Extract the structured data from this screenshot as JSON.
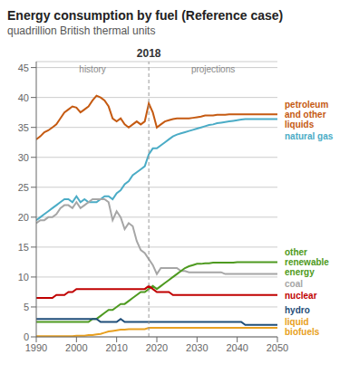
{
  "chart_data": {
    "type": "line",
    "title": "Energy consumption by fuel (Reference case)",
    "subtitle": "quadrillion British thermal units",
    "x": [
      1990,
      1991,
      1992,
      1993,
      1994,
      1995,
      1996,
      1997,
      1998,
      1999,
      2000,
      2001,
      2002,
      2003,
      2004,
      2005,
      2006,
      2007,
      2008,
      2009,
      2010,
      2011,
      2012,
      2013,
      2014,
      2015,
      2016,
      2017,
      2018,
      2019,
      2020,
      2021,
      2022,
      2023,
      2024,
      2025,
      2026,
      2027,
      2028,
      2029,
      2030,
      2031,
      2032,
      2033,
      2034,
      2035,
      2036,
      2037,
      2038,
      2039,
      2040,
      2041,
      2042,
      2043,
      2044,
      2045,
      2046,
      2047,
      2048,
      2049,
      2050
    ],
    "xlim": [
      1990,
      2050
    ],
    "xticks": [
      1990,
      2000,
      2010,
      2020,
      2030,
      2040,
      2050
    ],
    "ylim": [
      0,
      46
    ],
    "yticks": [
      0,
      5,
      10,
      15,
      20,
      25,
      30,
      35,
      40,
      45
    ],
    "grid": true,
    "split": {
      "x": 2018,
      "label": "2018",
      "before": "history",
      "after": "projections"
    },
    "series": [
      {
        "name": "petroleum\nand other\nliquids",
        "color": "#c55a11",
        "values": [
          33.0,
          33.5,
          34.2,
          34.5,
          35.0,
          35.5,
          36.5,
          37.5,
          38.0,
          38.5,
          38.3,
          37.5,
          38.0,
          38.5,
          39.5,
          40.3,
          40.0,
          39.5,
          38.5,
          36.5,
          36.0,
          36.5,
          35.5,
          35.0,
          35.5,
          36.0,
          35.5,
          36.0,
          39.0,
          37.5,
          35.0,
          35.5,
          36.0,
          36.2,
          36.4,
          36.5,
          36.5,
          36.5,
          36.5,
          36.6,
          36.7,
          36.8,
          37.0,
          37.0,
          37.0,
          37.1,
          37.1,
          37.1,
          37.2,
          37.2,
          37.2,
          37.2,
          37.2,
          37.2,
          37.2,
          37.2,
          37.2,
          37.2,
          37.2,
          37.2,
          37.2
        ]
      },
      {
        "name": "natural gas",
        "color": "#4bacc6",
        "values": [
          19.5,
          20.0,
          20.5,
          21.0,
          21.5,
          22.0,
          22.5,
          23.0,
          23.0,
          22.5,
          23.5,
          22.5,
          23.0,
          22.5,
          22.5,
          22.5,
          23.0,
          23.5,
          23.5,
          23.0,
          24.0,
          24.5,
          25.5,
          26.0,
          27.0,
          27.5,
          28.0,
          28.5,
          30.5,
          31.5,
          31.5,
          32.0,
          32.5,
          33.0,
          33.5,
          33.8,
          34.0,
          34.2,
          34.4,
          34.6,
          34.8,
          35.0,
          35.2,
          35.4,
          35.5,
          35.7,
          35.8,
          35.9,
          36.0,
          36.1,
          36.2,
          36.3,
          36.4,
          36.4,
          36.4,
          36.4,
          36.4,
          36.4,
          36.4,
          36.4,
          36.4
        ]
      },
      {
        "name": "coal",
        "color": "#a6a6a6",
        "values": [
          19.0,
          19.5,
          19.5,
          20.0,
          20.0,
          20.5,
          21.5,
          22.0,
          22.0,
          21.5,
          22.5,
          21.5,
          22.0,
          22.5,
          23.0,
          23.0,
          23.0,
          23.0,
          22.5,
          19.5,
          21.0,
          20.0,
          18.0,
          19.0,
          18.5,
          16.0,
          14.5,
          14.0,
          13.0,
          12.0,
          10.5,
          11.5,
          11.5,
          11.5,
          11.5,
          11.5,
          11.0,
          11.0,
          10.8,
          10.8,
          10.8,
          10.8,
          10.8,
          10.8,
          10.8,
          10.8,
          10.8,
          10.5,
          10.5,
          10.5,
          10.5,
          10.5,
          10.5,
          10.5,
          10.5,
          10.5,
          10.5,
          10.5,
          10.5,
          10.5,
          10.5
        ]
      },
      {
        "name": "other\nrenewable\nenergy",
        "color": "#4e9a20",
        "values": [
          2.5,
          2.5,
          2.5,
          2.5,
          2.5,
          2.5,
          2.5,
          2.5,
          2.5,
          2.5,
          2.5,
          2.5,
          2.5,
          2.5,
          3.0,
          3.0,
          3.5,
          4.0,
          4.5,
          4.5,
          5.0,
          5.5,
          5.5,
          6.0,
          6.5,
          7.0,
          7.5,
          7.5,
          8.0,
          8.5,
          8.0,
          8.5,
          9.0,
          9.5,
          10.0,
          10.5,
          11.0,
          11.5,
          11.8,
          12.0,
          12.2,
          12.2,
          12.3,
          12.3,
          12.4,
          12.4,
          12.4,
          12.4,
          12.4,
          12.4,
          12.5,
          12.5,
          12.5,
          12.5,
          12.5,
          12.5,
          12.5,
          12.5,
          12.5,
          12.5,
          12.5
        ]
      },
      {
        "name": "nuclear",
        "color": "#c00000",
        "values": [
          6.5,
          6.5,
          6.5,
          6.5,
          6.5,
          7.0,
          7.0,
          7.0,
          7.5,
          7.5,
          8.0,
          8.0,
          8.0,
          8.0,
          8.0,
          8.0,
          8.0,
          8.0,
          8.0,
          8.0,
          8.0,
          8.0,
          8.0,
          8.0,
          8.0,
          8.0,
          8.0,
          8.0,
          8.5,
          8.0,
          7.5,
          7.5,
          7.5,
          7.5,
          7.0,
          7.0,
          7.0,
          7.0,
          7.0,
          7.0,
          7.0,
          7.0,
          7.0,
          7.0,
          7.0,
          7.0,
          7.0,
          7.0,
          7.0,
          7.0,
          7.0,
          7.0,
          7.0,
          7.0,
          7.0,
          7.0,
          7.0,
          7.0,
          7.0,
          7.0,
          7.0
        ]
      },
      {
        "name": "hydro",
        "color": "#1f4e79",
        "values": [
          3.0,
          3.0,
          3.0,
          3.0,
          3.0,
          3.0,
          3.0,
          3.0,
          3.0,
          3.0,
          3.0,
          3.0,
          3.0,
          3.0,
          3.0,
          3.0,
          2.5,
          2.5,
          2.5,
          2.5,
          2.5,
          3.0,
          2.5,
          2.5,
          2.5,
          2.5,
          2.5,
          2.5,
          2.5,
          2.5,
          2.5,
          2.5,
          2.5,
          2.5,
          2.5,
          2.5,
          2.5,
          2.5,
          2.5,
          2.5,
          2.5,
          2.5,
          2.5,
          2.5,
          2.5,
          2.5,
          2.5,
          2.5,
          2.5,
          2.5,
          2.5,
          2.5,
          2.0,
          2.0,
          2.0,
          2.0,
          2.0,
          2.0,
          2.0,
          2.0,
          2.0
        ]
      },
      {
        "name": "liquid\nbiofuels",
        "color": "#e8a020",
        "values": [
          0.1,
          0.1,
          0.1,
          0.1,
          0.1,
          0.1,
          0.1,
          0.1,
          0.1,
          0.1,
          0.2,
          0.2,
          0.2,
          0.3,
          0.3,
          0.4,
          0.5,
          0.7,
          0.9,
          1.0,
          1.1,
          1.2,
          1.2,
          1.3,
          1.3,
          1.3,
          1.3,
          1.3,
          1.5,
          1.5,
          1.5,
          1.5,
          1.5,
          1.5,
          1.5,
          1.5,
          1.5,
          1.5,
          1.5,
          1.5,
          1.5,
          1.5,
          1.5,
          1.5,
          1.5,
          1.5,
          1.5,
          1.5,
          1.5,
          1.5,
          1.5,
          1.5,
          1.5,
          1.5,
          1.5,
          1.5,
          1.5,
          1.5,
          1.5,
          1.5,
          1.5
        ]
      }
    ]
  }
}
